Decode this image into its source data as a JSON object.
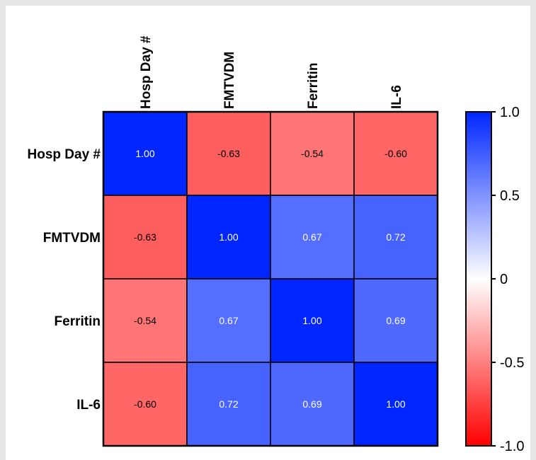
{
  "chart_data": {
    "type": "heatmap",
    "title": "",
    "row_labels": [
      "Hosp Day #",
      "FMTVDM",
      "Ferritin",
      "IL-6"
    ],
    "col_labels": [
      "Hosp Day #",
      "FMTVDM",
      "Ferritin",
      "IL-6"
    ],
    "values": [
      [
        1.0,
        -0.63,
        -0.54,
        -0.6
      ],
      [
        -0.63,
        1.0,
        0.67,
        0.72
      ],
      [
        -0.54,
        0.67,
        1.0,
        0.69
      ],
      [
        -0.6,
        0.72,
        0.69,
        1.0
      ]
    ],
    "cell_labels": [
      [
        "1.00",
        "-0.63",
        "-0.54",
        "-0.60"
      ],
      [
        "-0.63",
        "1.00",
        "0.67",
        "0.72"
      ],
      [
        "-0.54",
        "0.67",
        "1.00",
        "0.69"
      ],
      [
        "-0.60",
        "0.72",
        "0.69",
        "1.00"
      ]
    ],
    "colorbar": {
      "range": [
        -1.0,
        1.0
      ],
      "ticks": [
        1.0,
        0.5,
        0,
        -0.5,
        -1.0
      ],
      "tick_labels": [
        "1.0",
        "0.5",
        "0",
        "-0.5",
        "-1.0"
      ],
      "colors": {
        "min": "#ff0000",
        "mid": "#ffffff",
        "max": "#0026ff"
      }
    },
    "grid": true
  }
}
